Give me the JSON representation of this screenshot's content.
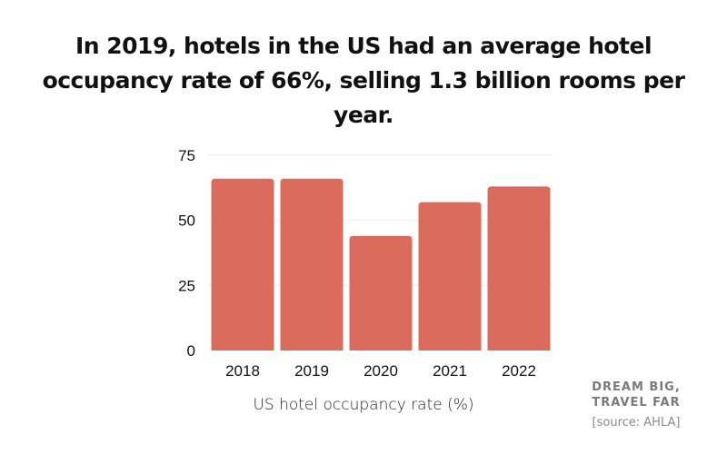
{
  "headline": "In 2019, hotels in the US had an average hotel occupancy rate of 66%, selling 1.3 billion rooms per year.",
  "brand": {
    "line1": "DREAM BIG,",
    "line2": "TRAVEL FAR"
  },
  "source": "[source: AHLA]",
  "colors": {
    "bar": "#DB6B5D",
    "grid": "#ECECEC",
    "text": "#111111"
  },
  "chart_data": {
    "type": "bar",
    "title": "In 2019, hotels in the US had an average hotel occupancy rate of 66%, selling 1.3 billion rooms per year.",
    "categories": [
      "2018",
      "2019",
      "2020",
      "2021",
      "2022"
    ],
    "values": [
      66,
      66,
      44,
      57,
      63
    ],
    "xlabel": "US hotel occupancy rate (%)",
    "ylabel": "",
    "ylim": [
      0,
      75
    ],
    "yticks": [
      0,
      25,
      50,
      75
    ],
    "grid": true,
    "legend": "none"
  }
}
